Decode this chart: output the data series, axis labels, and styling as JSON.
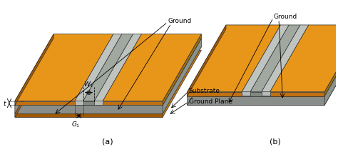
{
  "fig_width": 4.74,
  "fig_height": 2.13,
  "dpi": 100,
  "bg_color": "#ffffff",
  "orange": "#E8961A",
  "orange_dark": "#C07010",
  "orange_vdark": "#A05800",
  "gray_light": "#C0C4C0",
  "gray_mid": "#A0A8A0",
  "gray_sub_top": "#B8BCB8",
  "gray_sub_side": "#909490",
  "gray_sub_front": "#8A8E8A",
  "label_a": "(a)",
  "label_b": "(b)",
  "label_ground": "Ground",
  "label_substrate": "Substrate",
  "label_ground_plane": "Ground Plane",
  "label_w1": "$W_1$",
  "label_t": "$t$",
  "label_g1": "$G_1$"
}
